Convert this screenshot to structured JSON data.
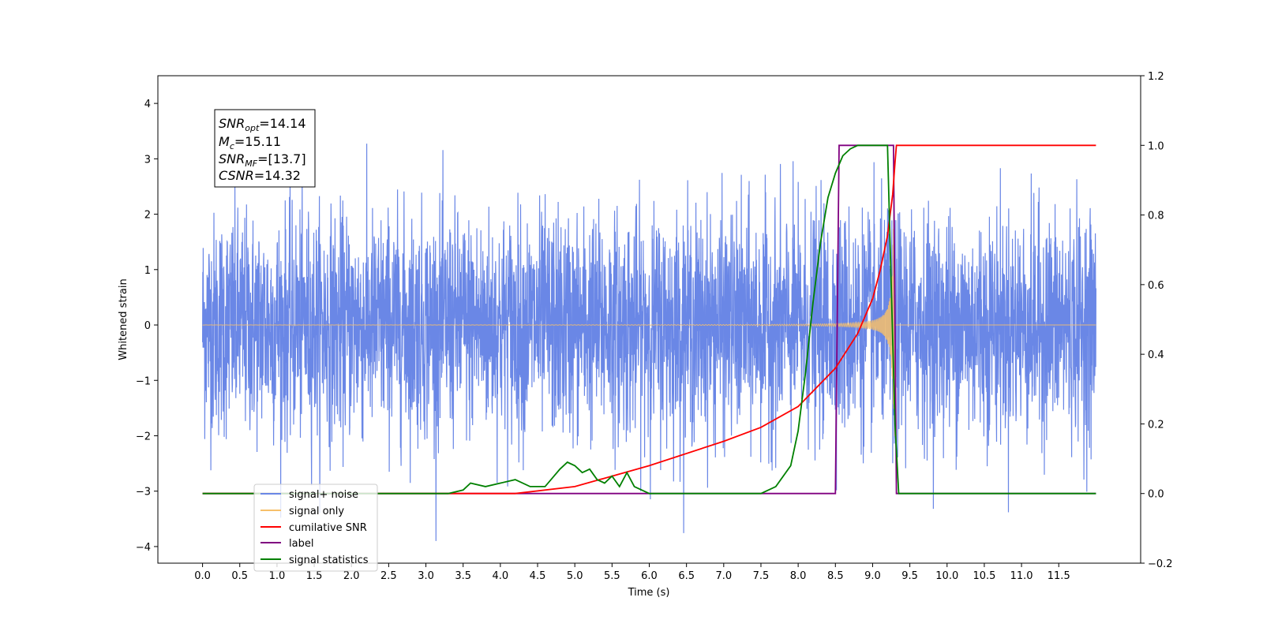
{
  "chart_data": {
    "type": "line",
    "xlabel": "Time (s)",
    "ylabel_left": "Whitened strain",
    "ylabel_right": "",
    "xlim": [
      -0.6,
      12.6
    ],
    "ylim_left": [
      -4.3,
      4.5
    ],
    "ylim_right": [
      -0.2,
      1.2
    ],
    "x_ticks": [
      "0.0",
      "0.5",
      "1.0",
      "1.5",
      "2.0",
      "2.5",
      "3.0",
      "3.5",
      "4.0",
      "4.5",
      "5.0",
      "5.5",
      "6.0",
      "6.5",
      "7.0",
      "7.5",
      "8.0",
      "8.5",
      "9.0",
      "9.5",
      "10.0",
      "10.5",
      "11.0",
      "11.5"
    ],
    "x_tick_values": [
      0.0,
      0.5,
      1.0,
      1.5,
      2.0,
      2.5,
      3.0,
      3.5,
      4.0,
      4.5,
      5.0,
      5.5,
      6.0,
      6.5,
      7.0,
      7.5,
      8.0,
      8.5,
      9.0,
      9.5,
      10.0,
      10.5,
      11.0,
      11.5
    ],
    "y_ticks_left": [
      "−4",
      "−3",
      "−2",
      "−1",
      "0",
      "1",
      "2",
      "3",
      "4"
    ],
    "y_tick_values_left": [
      -4,
      -3,
      -2,
      -1,
      0,
      1,
      2,
      3,
      4
    ],
    "y_ticks_right": [
      "−0.2",
      "0.0",
      "0.2",
      "0.4",
      "0.6",
      "0.8",
      "1.0",
      "1.2"
    ],
    "y_tick_values_right": [
      -0.2,
      0.0,
      0.2,
      0.4,
      0.6,
      0.8,
      1.0,
      1.2
    ],
    "legend_position": "lower-left",
    "annotation": {
      "lines": [
        {
          "main": "SNR",
          "sub": "opt",
          "rest": "=14.14"
        },
        {
          "main": "M",
          "sub": "c",
          "rest": "=15.11"
        },
        {
          "main": "SNR",
          "sub": "MF",
          "rest": "=[13.7]"
        },
        {
          "main": "CSNR",
          "sub": "",
          "rest": "=14.32"
        }
      ]
    },
    "series": [
      {
        "name": "signal+ noise",
        "axis": "left",
        "color": "#6a87e6",
        "kind": "noise",
        "x_range": [
          0.0,
          12.0
        ],
        "amplitude_rms": 1.0
      },
      {
        "name": "signal only",
        "axis": "left",
        "color": "#f7c06a",
        "kind": "chirp",
        "x_range": [
          0.0,
          9.3
        ],
        "peak_amplitude": 2.0
      },
      {
        "name": "cumilative SNR",
        "axis": "right",
        "color": "#ff0000",
        "x": [
          0.0,
          4.2,
          5.0,
          6.0,
          7.0,
          7.5,
          8.0,
          8.5,
          8.8,
          9.0,
          9.1,
          9.2,
          9.27,
          9.3,
          9.32,
          12.0
        ],
        "y": [
          0.0,
          0.0,
          0.02,
          0.08,
          0.15,
          0.19,
          0.25,
          0.36,
          0.46,
          0.56,
          0.64,
          0.74,
          0.86,
          0.95,
          1.0,
          1.0
        ]
      },
      {
        "name": "label",
        "axis": "right",
        "color": "#800080",
        "x": [
          0.0,
          8.5,
          8.55,
          9.28,
          9.32,
          12.0
        ],
        "y": [
          0.0,
          0.0,
          1.0,
          1.0,
          0.0,
          0.0
        ]
      },
      {
        "name": "signal statistics",
        "axis": "right",
        "color": "#008000",
        "x": [
          0.0,
          3.3,
          3.5,
          3.6,
          3.8,
          4.0,
          4.2,
          4.4,
          4.6,
          4.8,
          4.9,
          5.0,
          5.1,
          5.2,
          5.3,
          5.4,
          5.5,
          5.6,
          5.7,
          5.8,
          6.0,
          6.5,
          7.5,
          7.7,
          7.9,
          8.0,
          8.1,
          8.2,
          8.3,
          8.4,
          8.5,
          8.6,
          8.7,
          8.8,
          9.0,
          9.2,
          9.25,
          9.3,
          9.35,
          12.0
        ],
        "y": [
          0.0,
          0.0,
          0.01,
          0.03,
          0.02,
          0.03,
          0.04,
          0.02,
          0.02,
          0.07,
          0.09,
          0.08,
          0.06,
          0.07,
          0.04,
          0.03,
          0.05,
          0.02,
          0.06,
          0.02,
          0.0,
          0.0,
          0.0,
          0.02,
          0.08,
          0.18,
          0.35,
          0.55,
          0.72,
          0.85,
          0.92,
          0.97,
          0.99,
          1.0,
          1.0,
          1.0,
          0.6,
          0.2,
          0.0,
          0.0
        ]
      }
    ]
  }
}
